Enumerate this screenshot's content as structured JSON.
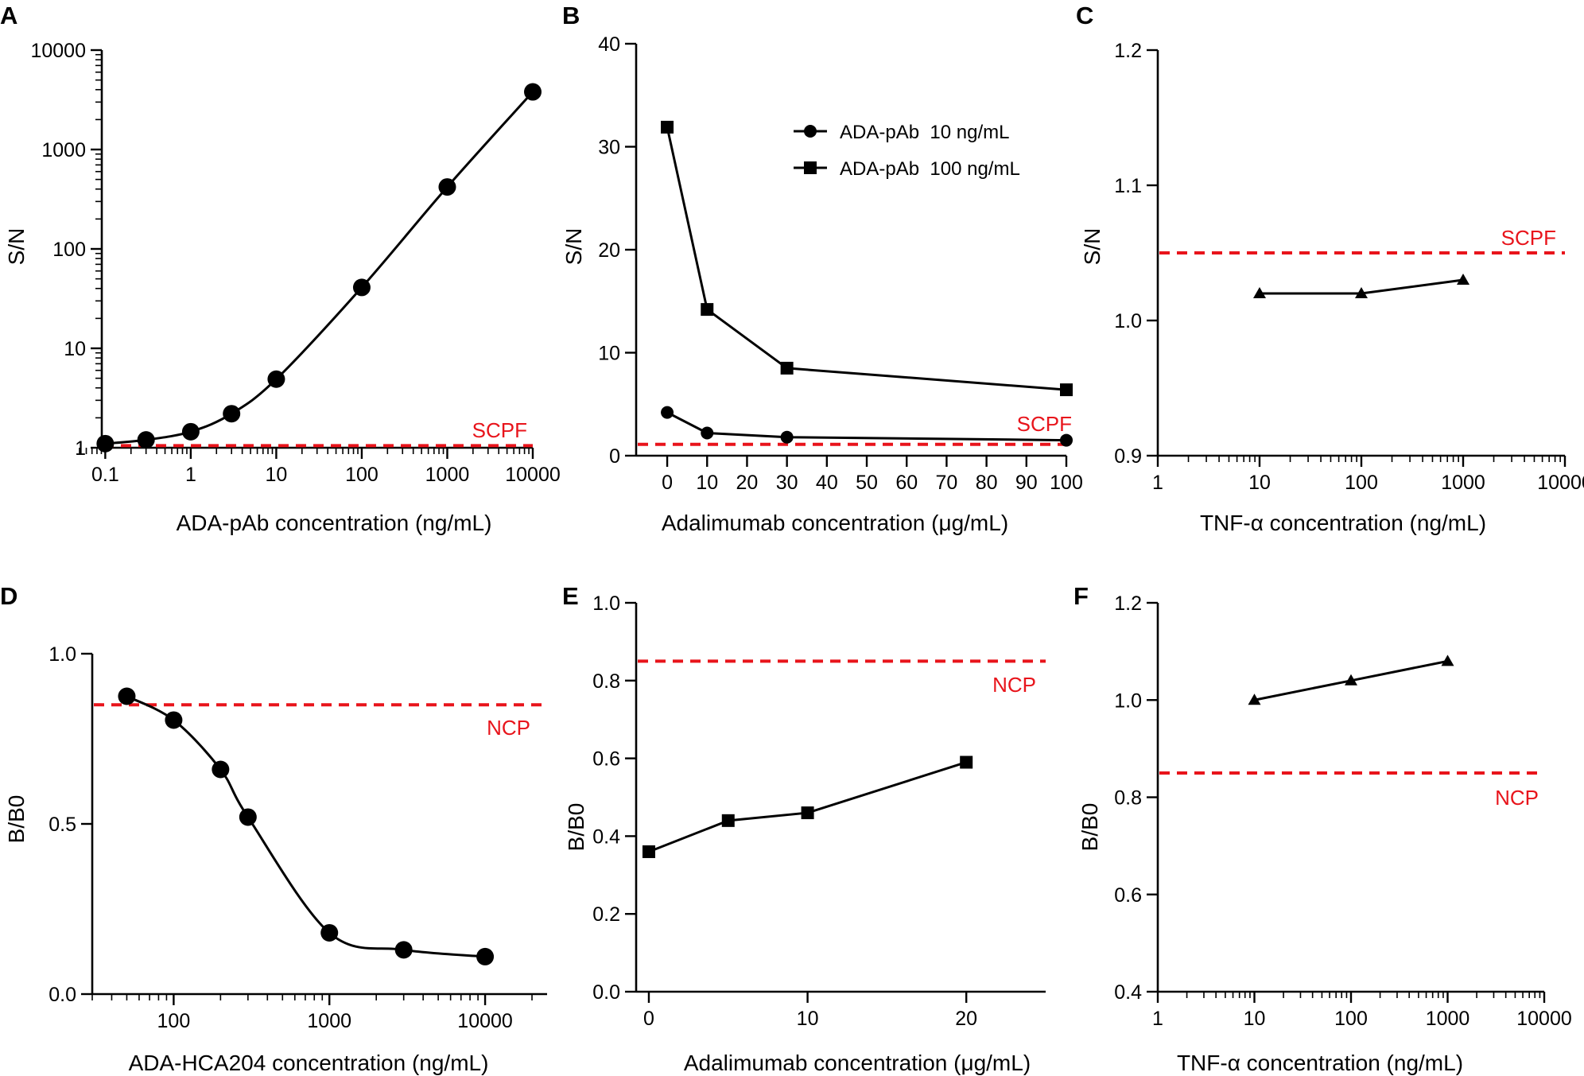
{
  "colors": {
    "ink": "#000000",
    "threshold": "#e8141b",
    "background": "#ffffff"
  },
  "chart_data": [
    {
      "panel": "A",
      "type": "line",
      "xscale": "log",
      "yscale": "log",
      "xlabel": "ADA-pAb concentration (ng/mL)",
      "ylabel": "S/N",
      "xlim": [
        0.05,
        10000
      ],
      "ylim": [
        1,
        10000
      ],
      "xticks": [
        0.1,
        1,
        10,
        100,
        1000,
        10000
      ],
      "xtick_labels": [
        "0.1",
        "1",
        "10",
        "100",
        "1000",
        "10000"
      ],
      "yticks": [
        1,
        10,
        100,
        1000,
        10000
      ],
      "ytick_labels": [
        "1",
        "10",
        "100",
        "1000",
        "10000"
      ],
      "series": [
        {
          "name": "S/N",
          "marker": "circle",
          "curve": "smooth",
          "x": [
            0.1,
            0.3,
            1,
            3,
            10,
            100,
            1000,
            10000
          ],
          "y": [
            1.1,
            1.2,
            1.45,
            2.2,
            4.9,
            41,
            420,
            3800
          ]
        }
      ],
      "reference": {
        "label": "SCPF",
        "y": 1.05
      }
    },
    {
      "panel": "B",
      "type": "line",
      "xlabel": "Adalimumab concentration (μg/mL)",
      "ylabel": "S/N",
      "xlim": [
        -3,
        100
      ],
      "ylim": [
        0,
        40
      ],
      "xticks": [
        0,
        10,
        20,
        30,
        40,
        50,
        60,
        70,
        80,
        90,
        100
      ],
      "xtick_labels": [
        "0",
        "10",
        "20",
        "30",
        "40",
        "50",
        "60",
        "70",
        "80",
        "90",
        "100"
      ],
      "yticks": [
        0,
        10,
        20,
        30,
        40
      ],
      "ytick_labels": [
        "0",
        "10",
        "20",
        "30",
        "40"
      ],
      "series": [
        {
          "name": "ADA-pAb  10 ng/mL",
          "marker": "circle",
          "x": [
            0,
            10,
            30,
            100
          ],
          "y": [
            4.2,
            2.2,
            1.8,
            1.5
          ]
        },
        {
          "name": "ADA-pAb  100 ng/mL",
          "marker": "square",
          "x": [
            0,
            10,
            30,
            100
          ],
          "y": [
            31.9,
            14.2,
            8.5,
            6.4
          ]
        }
      ],
      "legend": "top-right",
      "reference": {
        "label": "SCPF",
        "y": 1.1
      }
    },
    {
      "panel": "C",
      "type": "line",
      "xscale": "log",
      "xlabel": "TNF-α concentration (ng/mL)",
      "ylabel": "S/N",
      "xlim": [
        1,
        10000
      ],
      "ylim": [
        0.9,
        1.2
      ],
      "xticks": [
        1,
        10,
        100,
        1000,
        10000
      ],
      "xtick_labels": [
        "1",
        "10",
        "100",
        "1000",
        "10000"
      ],
      "yticks": [
        0.9,
        1.0,
        1.1,
        1.2
      ],
      "ytick_labels": [
        "0.9",
        "1.0",
        "1.1",
        "1.2"
      ],
      "series": [
        {
          "name": "S/N",
          "marker": "triangle",
          "x": [
            10,
            100,
            1000
          ],
          "y": [
            1.02,
            1.02,
            1.03
          ]
        }
      ],
      "reference": {
        "label": "SCPF",
        "y": 1.05
      }
    },
    {
      "panel": "D",
      "type": "line",
      "xscale": "log",
      "xlabel": "ADA-HCA204 concentration (ng/mL)",
      "ylabel": "B/B0",
      "xlim": [
        30,
        25000
      ],
      "ylim": [
        0,
        1.0
      ],
      "xticks": [
        100,
        1000,
        10000
      ],
      "xtick_labels": [
        "100",
        "1000",
        "10000"
      ],
      "yticks": [
        0,
        0.5,
        1.0
      ],
      "ytick_labels": [
        "0.0",
        "0.5",
        "1.0"
      ],
      "series": [
        {
          "name": "B/B0",
          "marker": "circle",
          "curve": "sigmoid",
          "x": [
            50,
            100,
            200,
            300,
            1000,
            3000,
            10000
          ],
          "y": [
            0.875,
            0.805,
            0.66,
            0.52,
            0.18,
            0.13,
            0.11
          ]
        }
      ],
      "reference": {
        "label": "NCP",
        "y": 0.85
      }
    },
    {
      "panel": "E",
      "type": "line",
      "xlabel": "Adalimumab concentration (μg/mL)",
      "ylabel": "B/B0",
      "xlim": [
        -0.8,
        25
      ],
      "ylim": [
        0,
        1.0
      ],
      "xticks": [
        0,
        10,
        20
      ],
      "xtick_labels": [
        "0",
        "10",
        "20"
      ],
      "yticks": [
        0,
        0.2,
        0.4,
        0.6,
        0.8,
        1.0
      ],
      "ytick_labels": [
        "0.0",
        "0.2",
        "0.4",
        "0.6",
        "0.8",
        "1.0"
      ],
      "series": [
        {
          "name": "B/B0",
          "marker": "square",
          "x": [
            0,
            5,
            10,
            20
          ],
          "y": [
            0.36,
            0.44,
            0.46,
            0.59
          ]
        }
      ],
      "reference": {
        "label": "NCP",
        "y": 0.85
      }
    },
    {
      "panel": "F",
      "type": "line",
      "xscale": "log",
      "xlabel": "TNF-α concentration (ng/mL)",
      "ylabel": "B/B0",
      "xlim": [
        1,
        10000
      ],
      "ylim": [
        0.4,
        1.2
      ],
      "xticks": [
        1,
        10,
        100,
        1000,
        10000
      ],
      "xtick_labels": [
        "1",
        "10",
        "100",
        "1000",
        "10000"
      ],
      "yticks": [
        0.4,
        0.6,
        0.8,
        1.0,
        1.2
      ],
      "ytick_labels": [
        "0.4",
        "0.6",
        "0.8",
        "1.0",
        "1.2"
      ],
      "series": [
        {
          "name": "B/B0",
          "marker": "triangle",
          "x": [
            10,
            100,
            1000
          ],
          "y": [
            1.0,
            1.04,
            1.08
          ]
        }
      ],
      "reference": {
        "label": "NCP",
        "y": 0.85
      }
    }
  ]
}
